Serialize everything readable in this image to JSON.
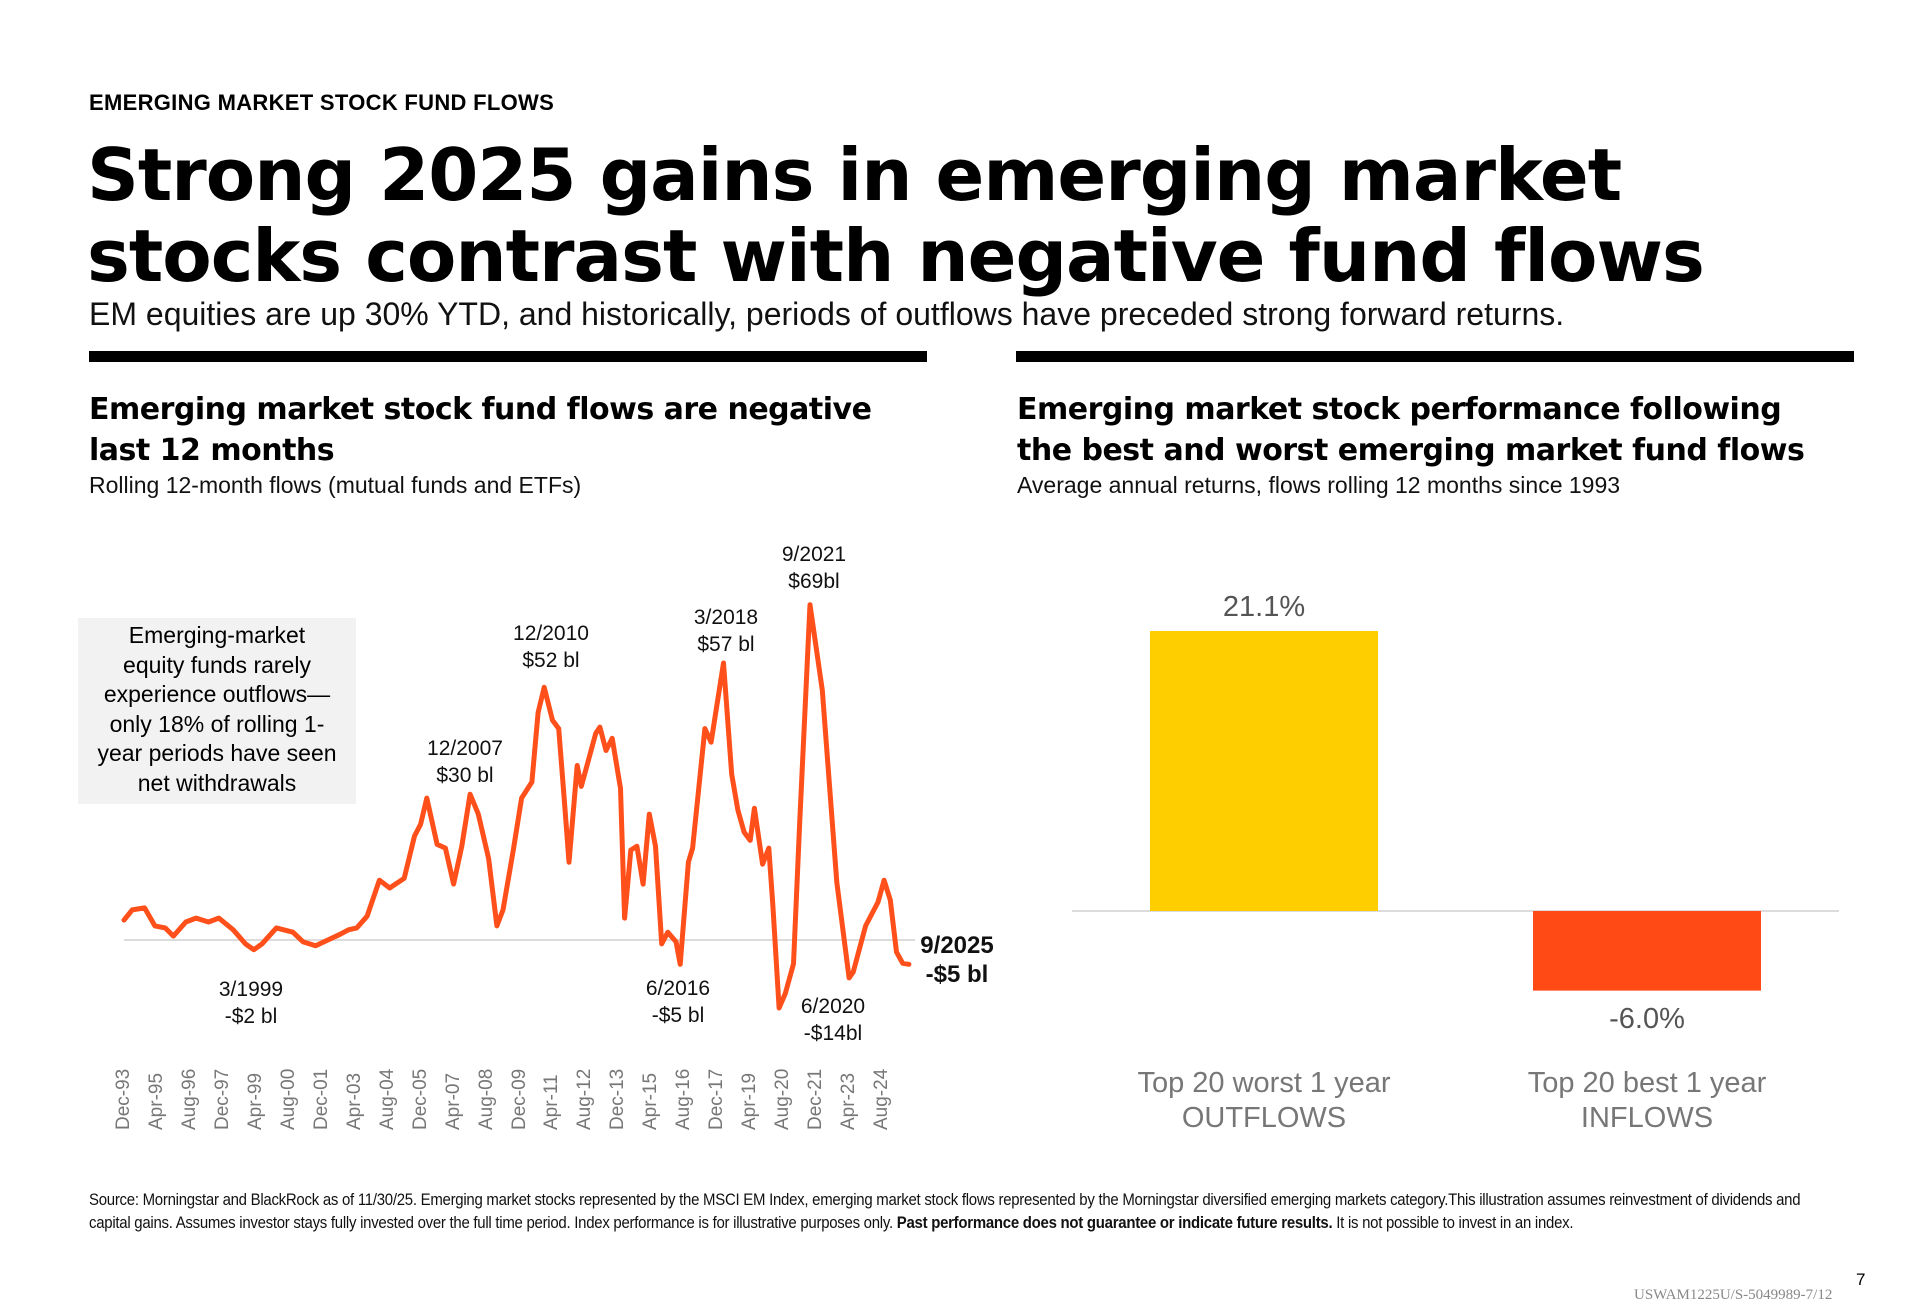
{
  "header": {
    "kicker": "EMERGING MARKET STOCK FUND FLOWS",
    "title_line1": "Strong 2025 gains in emerging market",
    "title_line2": "stocks contrast with negative fund flows",
    "subtitle": "EM equities are up 30% YTD, and historically, periods of outflows have preceded strong forward returns."
  },
  "left_panel": {
    "heading_line1": "Emerging market stock fund flows are negative",
    "heading_line2": "last 12 months",
    "subheading": "Rolling 12-month flows (mutual funds and ETFs)",
    "callout_lines": [
      "Emerging-market",
      "equity funds rarely",
      "experience outflows—",
      "only 18% of rolling 1-",
      "year periods have seen",
      "net withdrawals"
    ]
  },
  "right_panel": {
    "heading_line1": "Emerging market stock performance following",
    "heading_line2": "the best and worst emerging market fund flows",
    "subheading": "Average annual returns, flows rolling 12 months since 1993"
  },
  "chart_data": [
    {
      "type": "line",
      "title": "Emerging market stock fund flows are negative last 12 months",
      "ylabel": "",
      "unit": "$ bl",
      "color": "#FF4F1A",
      "zero_line": true,
      "ylim": [
        -15,
        70
      ],
      "x_tick_labels": [
        "Dec-93",
        "Apr-95",
        "Aug-96",
        "Dec-97",
        "Apr-99",
        "Aug-00",
        "Dec-01",
        "Apr-03",
        "Aug-04",
        "Dec-05",
        "Apr-07",
        "Aug-08",
        "Dec-09",
        "Apr-11",
        "Aug-12",
        "Dec-13",
        "Apr-15",
        "Aug-16",
        "Dec-17",
        "Apr-19",
        "Aug-20",
        "Dec-21",
        "Apr-23",
        "Aug-24"
      ],
      "x": [
        "1993-12",
        "1994-04",
        "1994-10",
        "1995-03",
        "1995-08",
        "1995-12",
        "1996-06",
        "1996-11",
        "1997-05",
        "1997-10",
        "1998-05",
        "1998-11",
        "1999-03",
        "1999-07",
        "2000-02",
        "2000-10",
        "2001-03",
        "2001-09",
        "2002-03",
        "2002-09",
        "2003-01",
        "2003-05",
        "2003-10",
        "2004-04",
        "2004-09",
        "2005-04",
        "2005-09",
        "2005-12",
        "2006-03",
        "2006-08",
        "2006-12",
        "2007-04",
        "2007-08",
        "2007-12",
        "2008-04",
        "2008-09",
        "2009-01",
        "2009-04",
        "2009-09",
        "2010-01",
        "2010-06",
        "2010-09",
        "2010-12",
        "2011-04",
        "2011-07",
        "2011-10",
        "2011-12",
        "2012-04",
        "2012-06",
        "2013-01",
        "2013-03",
        "2013-06",
        "2013-09",
        "2014-01",
        "2014-03",
        "2014-06",
        "2014-09",
        "2014-12",
        "2015-03",
        "2015-06",
        "2015-09",
        "2015-12",
        "2016-04",
        "2016-06",
        "2016-10",
        "2016-12",
        "2017-06",
        "2017-09",
        "2018-03",
        "2018-07",
        "2018-10",
        "2019-01",
        "2019-04",
        "2019-06",
        "2019-10",
        "2020-01",
        "2020-03",
        "2020-06",
        "2020-09",
        "2021-01",
        "2021-04",
        "2021-09",
        "2022-03",
        "2022-10",
        "2023-04",
        "2023-06",
        "2023-12",
        "2024-06",
        "2024-09",
        "2024-12",
        "2025-03",
        "2025-06",
        "2025-09"
      ],
      "values": [
        4.1,
        6.2,
        6.6,
        2.9,
        2.5,
        0.8,
        3.7,
        4.5,
        3.7,
        4.5,
        2.1,
        -0.8,
        -2,
        -0.8,
        2.5,
        1.6,
        -0.4,
        -1.2,
        0,
        1.2,
        2.1,
        2.5,
        4.9,
        12.3,
        10.7,
        12.7,
        21.4,
        23.8,
        29.2,
        19.7,
        18.9,
        11.5,
        19.3,
        30,
        25.9,
        16.8,
        2.9,
        6.2,
        18.5,
        29.2,
        32.5,
        46.8,
        52,
        45.2,
        43.5,
        27.5,
        16,
        35.9,
        31.6,
        42.5,
        43.8,
        39,
        41.5,
        31.2,
        4.5,
        18.5,
        19.3,
        11.5,
        25.9,
        19.3,
        -0.8,
        1.6,
        -0.4,
        -5,
        16,
        18.9,
        43.5,
        40.7,
        57,
        34.1,
        26.7,
        22.2,
        20.5,
        27.1,
        15.6,
        18.9,
        7,
        -14,
        -11,
        -4.9,
        24.2,
        69,
        51.4,
        11.9,
        -7.8,
        -6.6,
        2.9,
        7.8,
        12.3,
        8.2,
        -2.5,
        -4.8,
        -5
      ],
      "annotations": [
        {
          "date": "3/1999",
          "value": "-$2 bl",
          "bold": false
        },
        {
          "date": "12/2007",
          "value": "$30 bl",
          "bold": false
        },
        {
          "date": "12/2010",
          "value": "$52 bl",
          "bold": false
        },
        {
          "date": "6/2016",
          "value": "-$5 bl",
          "bold": false
        },
        {
          "date": "3/2018",
          "value": "$57 bl",
          "bold": false
        },
        {
          "date": "6/2020",
          "value": "-$14bl",
          "bold": false
        },
        {
          "date": "9/2021",
          "value": "$69bl",
          "bold": false
        },
        {
          "date": "9/2025",
          "value": "-$5 bl",
          "bold": true
        }
      ]
    },
    {
      "type": "bar",
      "title": "Emerging market stock performance following the best and worst emerging market fund flows",
      "categories": [
        [
          "Top 20 worst 1 year",
          "OUTFLOWS"
        ],
        [
          "Top 20 best 1 year",
          "INFLOWS"
        ]
      ],
      "values": [
        21.1,
        -6.0
      ],
      "value_labels": [
        "21.1%",
        "-6.0%"
      ],
      "colors": [
        "#FFCE00",
        "#FF4A16"
      ],
      "unit": "%",
      "zero_line": true
    }
  ],
  "footer": {
    "source_text": "Source: Morningstar and BlackRock as of 11/30/25. Emerging market stocks represented by the MSCI EM Index, emerging market stock flows represented by the Morningstar diversified emerging markets category.This illustration assumes reinvestment of dividends and capital gains. Assumes investor stays fully invested over the full time period. Index performance is for illustrative purposes only. ",
    "disclaimer_bold": "Past performance does not guarantee or indicate future results.",
    "source_tail": " It is not possible to invest in an index.",
    "page_number": "7",
    "doc_code": "USWAM1225U/S-5049989-7/12"
  }
}
